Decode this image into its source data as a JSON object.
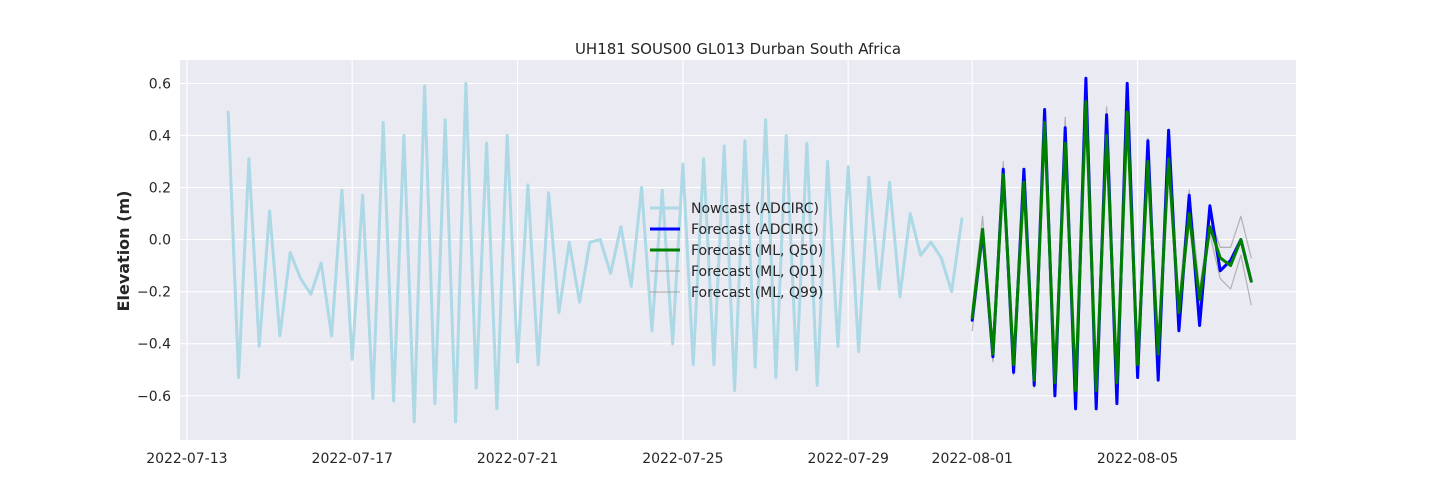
{
  "chart_data": {
    "type": "line",
    "title": "UH181 SOUS00 GL013 Durban South Africa",
    "xlabel": "",
    "ylabel": "Elevation (m)",
    "x_axis": {
      "type": "date",
      "range": [
        "2022-07-12T20:00",
        "2022-08-08T20:00"
      ],
      "ticks": [
        "2022-07-13",
        "2022-07-17",
        "2022-07-21",
        "2022-07-25",
        "2022-07-29",
        "2022-08-01",
        "2022-08-05"
      ]
    },
    "y_axis": {
      "range": [
        -0.77,
        0.69
      ],
      "ticks": [
        -0.6,
        -0.4,
        -0.2,
        0.0,
        0.2,
        0.4,
        0.6
      ],
      "tick_labels": [
        "−0.6",
        "−0.4",
        "−0.2",
        "0.0",
        "0.2",
        "0.4",
        "0.6"
      ]
    },
    "grid": true,
    "background": "#eaeaf2",
    "legend_position": "center",
    "series": [
      {
        "name": "Nowcast (ADCIRC)",
        "color": "#add8e6",
        "width": 3,
        "x_start": "2022-07-14T00:00",
        "step_hours": 6,
        "values": [
          0.49,
          -0.53,
          0.31,
          -0.41,
          0.11,
          -0.37,
          -0.05,
          -0.15,
          -0.21,
          -0.09,
          -0.37,
          0.19,
          -0.46,
          0.17,
          -0.61,
          0.45,
          -0.62,
          0.4,
          -0.7,
          0.59,
          -0.63,
          0.46,
          -0.7,
          0.6,
          -0.57,
          0.37,
          -0.65,
          0.4,
          -0.47,
          0.21,
          -0.48,
          0.18,
          -0.28,
          -0.01,
          -0.24,
          -0.01,
          0.0,
          -0.13,
          0.05,
          -0.18,
          0.2,
          -0.35,
          0.19,
          -0.4,
          0.29,
          -0.48,
          0.31,
          -0.48,
          0.36,
          -0.58,
          0.38,
          -0.49,
          0.46,
          -0.53,
          0.4,
          -0.5,
          0.37,
          -0.56,
          0.3,
          -0.41,
          0.28,
          -0.43,
          0.24,
          -0.19,
          0.22,
          -0.22,
          0.1,
          -0.06,
          -0.01,
          -0.07,
          -0.2,
          0.08
        ]
      },
      {
        "name": "Forecast (ADCIRC)",
        "color": "#0000ff",
        "width": 3,
        "x_start": "2022-08-01T00:00",
        "step_hours": 6,
        "values": [
          -0.31,
          0.03,
          -0.45,
          0.27,
          -0.51,
          0.27,
          -0.56,
          0.5,
          -0.6,
          0.43,
          -0.65,
          0.62,
          -0.65,
          0.48,
          -0.63,
          0.6,
          -0.53,
          0.38,
          -0.54,
          0.42,
          -0.35,
          0.17,
          -0.33,
          0.13,
          -0.12,
          -0.08,
          0.0,
          -0.16
        ]
      },
      {
        "name": "Forecast (ML, Q50)",
        "color": "#008000",
        "width": 3,
        "x_start": "2022-08-01T00:00",
        "step_hours": 6,
        "values": [
          -0.3,
          0.04,
          -0.44,
          0.25,
          -0.48,
          0.22,
          -0.54,
          0.45,
          -0.55,
          0.37,
          -0.58,
          0.53,
          -0.58,
          0.4,
          -0.55,
          0.49,
          -0.48,
          0.3,
          -0.44,
          0.31,
          -0.28,
          0.1,
          -0.23,
          0.05,
          -0.07,
          -0.1,
          0.0,
          -0.16
        ]
      },
      {
        "name": "Forecast (ML, Q01)",
        "color": "#999999",
        "width": 1.2,
        "x_start": "2022-08-01T00:00",
        "step_hours": 6,
        "values": [
          -0.35,
          0.0,
          -0.47,
          0.2,
          -0.52,
          0.18,
          -0.57,
          0.41,
          -0.58,
          0.33,
          -0.61,
          0.49,
          -0.61,
          0.36,
          -0.58,
          0.45,
          -0.51,
          0.26,
          -0.47,
          0.27,
          -0.31,
          0.06,
          -0.27,
          0.02,
          -0.15,
          -0.19,
          -0.06,
          -0.25
        ]
      },
      {
        "name": "Forecast (ML, Q99)",
        "color": "#999999",
        "width": 1.2,
        "x_start": "2022-08-01T00:00",
        "step_hours": 6,
        "values": [
          -0.26,
          0.09,
          -0.4,
          0.3,
          -0.44,
          0.27,
          -0.5,
          0.5,
          -0.51,
          0.47,
          -0.54,
          0.58,
          -0.54,
          0.51,
          -0.51,
          0.53,
          -0.44,
          0.39,
          -0.4,
          0.35,
          -0.24,
          0.19,
          -0.19,
          0.09,
          -0.03,
          -0.03,
          0.09,
          -0.07
        ]
      }
    ]
  }
}
